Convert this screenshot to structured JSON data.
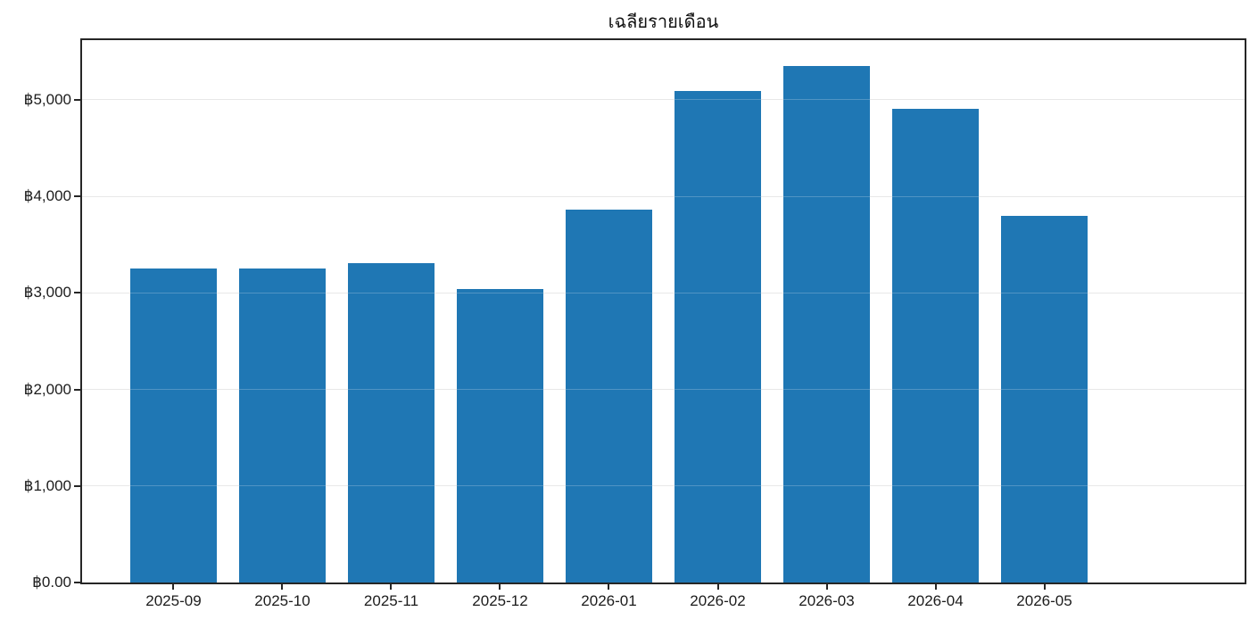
{
  "chart_data": {
    "type": "bar",
    "title": "เฉลียรายเดือน",
    "xlabel": "",
    "ylabel": "",
    "categories": [
      "2025-09",
      "2025-10",
      "2025-11",
      "2025-12",
      "2026-01",
      "2026-02",
      "2026-03",
      "2026-04",
      "2026-05"
    ],
    "values": [
      3250,
      3250,
      3305,
      3040,
      3860,
      5095,
      5350,
      4905,
      3795
    ],
    "yticks": [
      {
        "value": 0,
        "label": "฿0.00"
      },
      {
        "value": 1000,
        "label": "฿1,000"
      },
      {
        "value": 2000,
        "label": "฿2,000"
      },
      {
        "value": 3000,
        "label": "฿3,000"
      },
      {
        "value": 4000,
        "label": "฿4,000"
      },
      {
        "value": 5000,
        "label": "฿5,000"
      }
    ],
    "ylim": [
      0,
      5617
    ],
    "grid": true,
    "legend": false,
    "bar_color": "#1f77b4",
    "grid_color": "#e8e8e8",
    "axis_color": "#262626",
    "background_color": "#ffffff"
  }
}
